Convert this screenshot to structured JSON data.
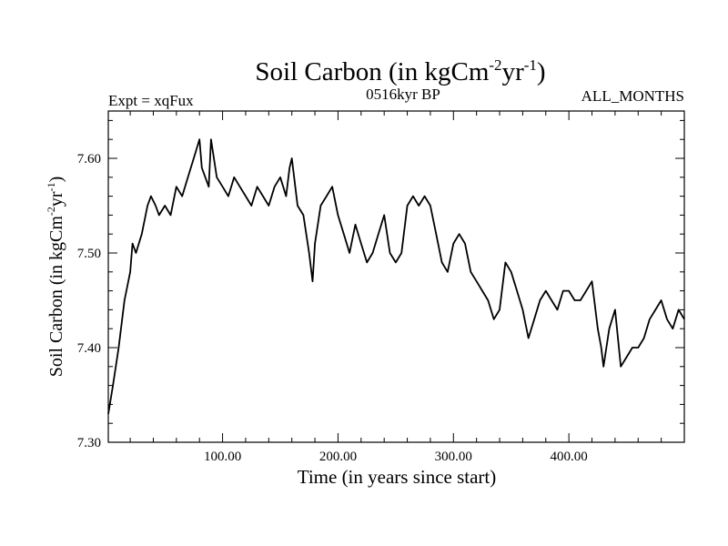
{
  "chart_data": {
    "type": "line",
    "title": "Soil Carbon (in kgCm",
    "title_sup1": "-2",
    "title_mid": "yr",
    "title_sup2": "-1",
    "title_end": ")",
    "subtitle_left": "Expt = xqFux",
    "subtitle_center": "0516kyr BP",
    "subtitle_right": "ALL_MONTHS",
    "xlabel": "Time (in years since start)",
    "ylabel": "Soil Carbon (in kgCm",
    "ylabel_sup1": "-2",
    "ylabel_mid": "yr",
    "ylabel_sup2": "-1",
    "ylabel_end": ")",
    "xlim": [
      1,
      500
    ],
    "ylim": [
      7.3,
      7.65
    ],
    "xticks": [
      100,
      200,
      300,
      400
    ],
    "xtick_labels": [
      "100.00",
      "200.00",
      "300.00",
      "400.00"
    ],
    "yticks": [
      7.3,
      7.4,
      7.5,
      7.6
    ],
    "ytick_labels": [
      "7.30",
      "7.40",
      "7.50",
      "7.60"
    ],
    "series": [
      {
        "name": "Soil Carbon",
        "x": [
          1,
          5,
          10,
          15,
          20,
          22,
          25,
          30,
          35,
          38,
          42,
          45,
          50,
          55,
          60,
          65,
          70,
          75,
          80,
          82,
          85,
          88,
          90,
          95,
          100,
          105,
          110,
          115,
          120,
          125,
          130,
          135,
          140,
          145,
          150,
          155,
          158,
          160,
          165,
          170,
          175,
          178,
          180,
          185,
          190,
          195,
          200,
          205,
          210,
          215,
          220,
          225,
          230,
          235,
          240,
          245,
          250,
          255,
          260,
          265,
          270,
          275,
          280,
          285,
          290,
          295,
          300,
          305,
          310,
          315,
          320,
          325,
          330,
          335,
          340,
          345,
          350,
          355,
          360,
          365,
          370,
          375,
          380,
          385,
          390,
          395,
          400,
          405,
          410,
          415,
          420,
          425,
          428,
          430,
          435,
          440,
          445,
          450,
          455,
          460,
          465,
          470,
          475,
          480,
          485,
          490,
          495,
          500
        ],
        "values": [
          7.33,
          7.36,
          7.4,
          7.45,
          7.48,
          7.51,
          7.5,
          7.52,
          7.55,
          7.56,
          7.55,
          7.54,
          7.55,
          7.54,
          7.57,
          7.56,
          7.58,
          7.6,
          7.62,
          7.59,
          7.58,
          7.57,
          7.62,
          7.58,
          7.57,
          7.56,
          7.58,
          7.57,
          7.56,
          7.55,
          7.57,
          7.56,
          7.55,
          7.57,
          7.58,
          7.56,
          7.59,
          7.6,
          7.55,
          7.54,
          7.5,
          7.47,
          7.51,
          7.55,
          7.56,
          7.57,
          7.54,
          7.52,
          7.5,
          7.53,
          7.51,
          7.49,
          7.5,
          7.52,
          7.54,
          7.5,
          7.49,
          7.5,
          7.55,
          7.56,
          7.55,
          7.56,
          7.55,
          7.52,
          7.49,
          7.48,
          7.51,
          7.52,
          7.51,
          7.48,
          7.47,
          7.46,
          7.45,
          7.43,
          7.44,
          7.49,
          7.48,
          7.46,
          7.44,
          7.41,
          7.43,
          7.45,
          7.46,
          7.45,
          7.44,
          7.46,
          7.46,
          7.45,
          7.45,
          7.46,
          7.47,
          7.42,
          7.4,
          7.38,
          7.42,
          7.44,
          7.38,
          7.39,
          7.4,
          7.4,
          7.41,
          7.43,
          7.44,
          7.45,
          7.43,
          7.42,
          7.44,
          7.43
        ]
      }
    ]
  }
}
